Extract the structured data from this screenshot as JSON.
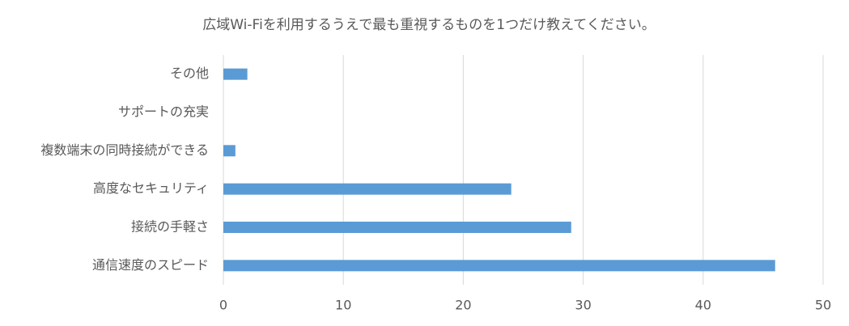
{
  "chart_data": {
    "type": "hbar",
    "title": "広域Wi-Fiを利用するうえで最も重視するものを1つだけ教えてください。",
    "categories": [
      "通信速度のスピード",
      "接続の手軽さ",
      "高度なセキュリティ",
      "複数端末の同時接続ができる",
      "サポートの充実",
      "その他"
    ],
    "values": [
      46,
      29,
      24,
      1,
      0,
      2
    ],
    "color": "#5b9bd5",
    "xlim": [
      0,
      50
    ],
    "xticks": [
      0,
      10,
      20,
      30,
      40,
      50
    ],
    "grid": true
  }
}
